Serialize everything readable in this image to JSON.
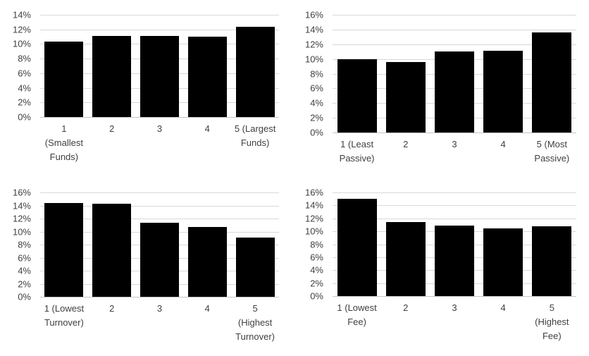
{
  "page": {
    "background": "#FFFFFF"
  },
  "style": {
    "bar_color": "#000000",
    "gridline_color": "#D9D9D9",
    "axis_line_color": "#C6C6C6",
    "text_color": "#404040"
  },
  "chart_data": [
    {
      "position": "top-left",
      "type": "bar",
      "categories": [
        "1\n(Smallest\nFunds)",
        "2",
        "3",
        "4",
        "5 (Largest\nFunds)"
      ],
      "values": [
        10.3,
        11.1,
        11.1,
        11.0,
        12.4
      ],
      "value_unit": "percent",
      "title": "",
      "xlabel": "",
      "ylabel": "",
      "ylim": [
        0,
        14
      ],
      "ytick_labels": [
        "0%",
        "2%",
        "4%",
        "6%",
        "8%",
        "10%",
        "12%",
        "14%"
      ],
      "grid": true,
      "legend": false,
      "bar_color": "#000000"
    },
    {
      "position": "top-right",
      "type": "bar",
      "categories": [
        "1 (Least\nPassive)",
        "2",
        "3",
        "4",
        "5 (Most\nPassive)"
      ],
      "values": [
        10.0,
        9.6,
        11.0,
        11.1,
        13.6
      ],
      "value_unit": "percent",
      "title": "",
      "xlabel": "",
      "ylabel": "",
      "ylim": [
        0,
        16
      ],
      "ytick_labels": [
        "0%",
        "2%",
        "4%",
        "6%",
        "8%",
        "10%",
        "12%",
        "14%",
        "16%"
      ],
      "grid": true,
      "legend": false,
      "bar_color": "#000000"
    },
    {
      "position": "bottom-left",
      "type": "bar",
      "categories": [
        "1 (Lowest\nTurnover)",
        "2",
        "3",
        "4",
        "5\n(Highest\nTurnover)"
      ],
      "values": [
        14.4,
        14.3,
        11.3,
        10.7,
        9.1
      ],
      "value_unit": "percent",
      "title": "",
      "xlabel": "",
      "ylabel": "",
      "ylim": [
        0,
        16
      ],
      "ytick_labels": [
        "0%",
        "2%",
        "4%",
        "6%",
        "8%",
        "10%",
        "12%",
        "14%",
        "16%"
      ],
      "grid": true,
      "legend": false,
      "bar_color": "#000000"
    },
    {
      "position": "bottom-right",
      "type": "bar",
      "categories": [
        "1 (Lowest\nFee)",
        "2",
        "3",
        "4",
        "5\n(Highest\nFee)"
      ],
      "values": [
        15.0,
        11.4,
        10.9,
        10.4,
        10.8
      ],
      "value_unit": "percent",
      "title": "",
      "xlabel": "",
      "ylabel": "",
      "ylim": [
        0,
        16
      ],
      "ytick_labels": [
        "0%",
        "2%",
        "4%",
        "6%",
        "8%",
        "10%",
        "12%",
        "14%",
        "16%"
      ],
      "grid": true,
      "legend": false,
      "bar_color": "#000000"
    }
  ]
}
